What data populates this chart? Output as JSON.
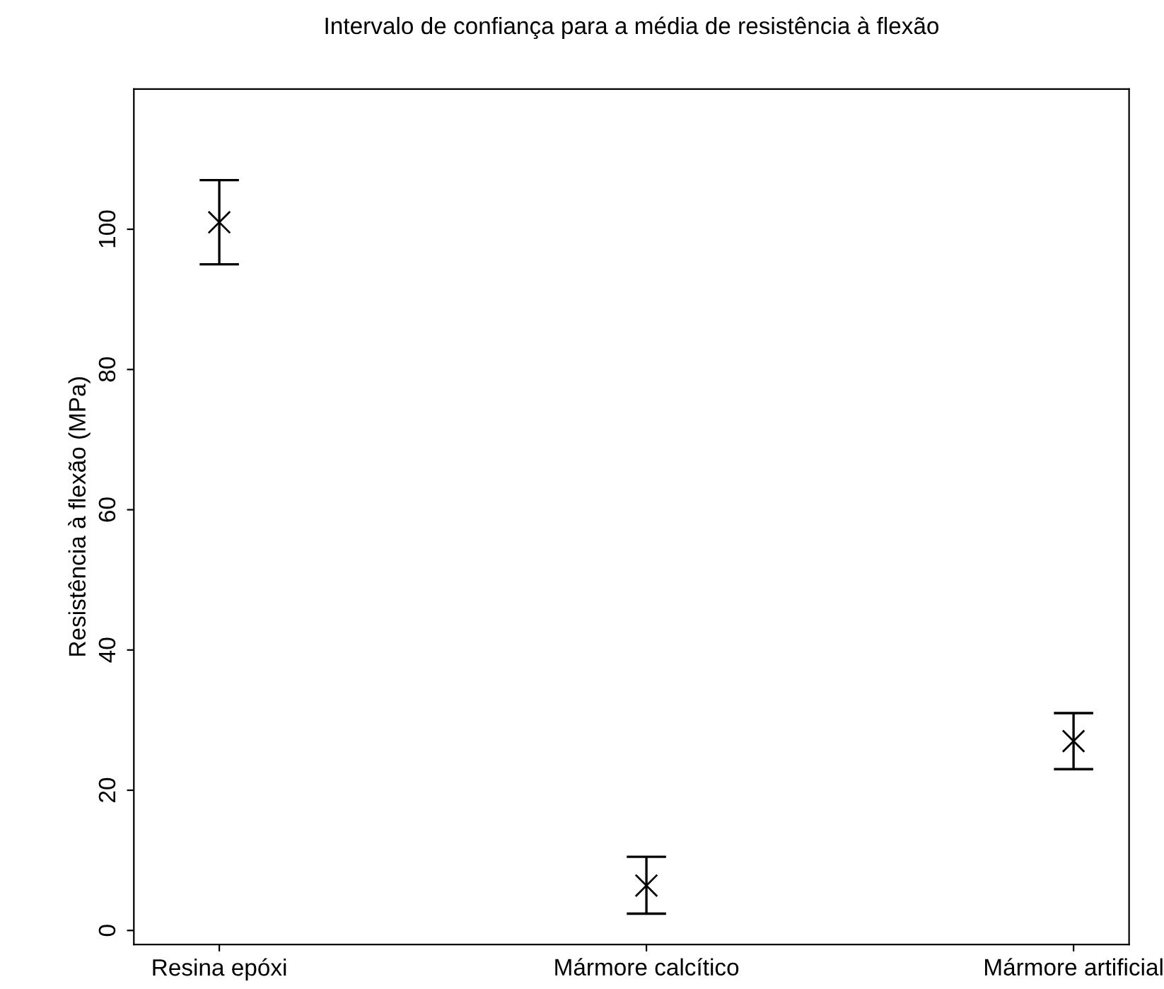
{
  "chart_data": {
    "type": "scatter",
    "title": "Intervalo de confiança para a média de resistência à flexão",
    "ylabel": "Resistência à flexão (MPa)",
    "categories": [
      "Resina epóxi",
      "Mármore calcítico",
      "Mármore artificial"
    ],
    "values": [
      101,
      6.4,
      27
    ],
    "errors": [
      [
        95,
        107
      ],
      [
        2.4,
        10.5
      ],
      [
        23,
        31
      ]
    ],
    "color": "#000000",
    "marker": "cross",
    "ylim": [
      -2,
      120
    ],
    "yticks": [
      0,
      20,
      40,
      60,
      80,
      100
    ],
    "grid": false,
    "legend": false
  }
}
